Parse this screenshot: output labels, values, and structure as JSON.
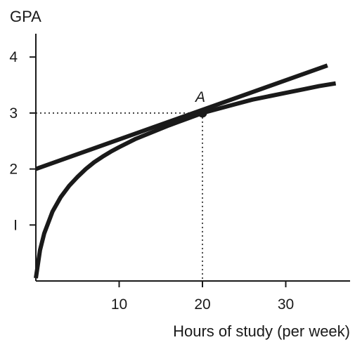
{
  "chart_data": {
    "type": "line",
    "ylabel": "GPA",
    "xlabel": "Hours of study (per week)",
    "xlim": [
      0,
      38
    ],
    "ylim": [
      0,
      4.6
    ],
    "x_ticks": [
      10,
      20,
      30
    ],
    "y_ticks": [
      1,
      2,
      3,
      4
    ],
    "x_tick_labels": [
      "10",
      "20",
      "30"
    ],
    "y_tick_labels": [
      "I",
      "2",
      "3",
      "4"
    ],
    "grid": false,
    "series": [
      {
        "kind": "curve",
        "x": [
          0,
          0.5,
          1,
          2,
          3,
          4,
          5,
          6,
          7,
          8,
          9,
          10,
          12,
          14,
          16,
          18,
          20,
          22,
          24,
          26,
          28,
          30,
          32,
          34,
          36
        ],
        "y": [
          0.05,
          0.55,
          0.85,
          1.24,
          1.5,
          1.7,
          1.86,
          2.0,
          2.12,
          2.22,
          2.31,
          2.39,
          2.54,
          2.66,
          2.78,
          2.89,
          3.0,
          3.08,
          3.16,
          3.24,
          3.3,
          3.36,
          3.42,
          3.48,
          3.53
        ],
        "color": "#1a1a1a"
      },
      {
        "kind": "tangent",
        "x": [
          0,
          35
        ],
        "y": [
          2.0,
          3.85
        ],
        "color": "#1a1a1a"
      }
    ],
    "annotations": [
      {
        "label": "A",
        "x": 20,
        "y": 3.0
      }
    ]
  }
}
